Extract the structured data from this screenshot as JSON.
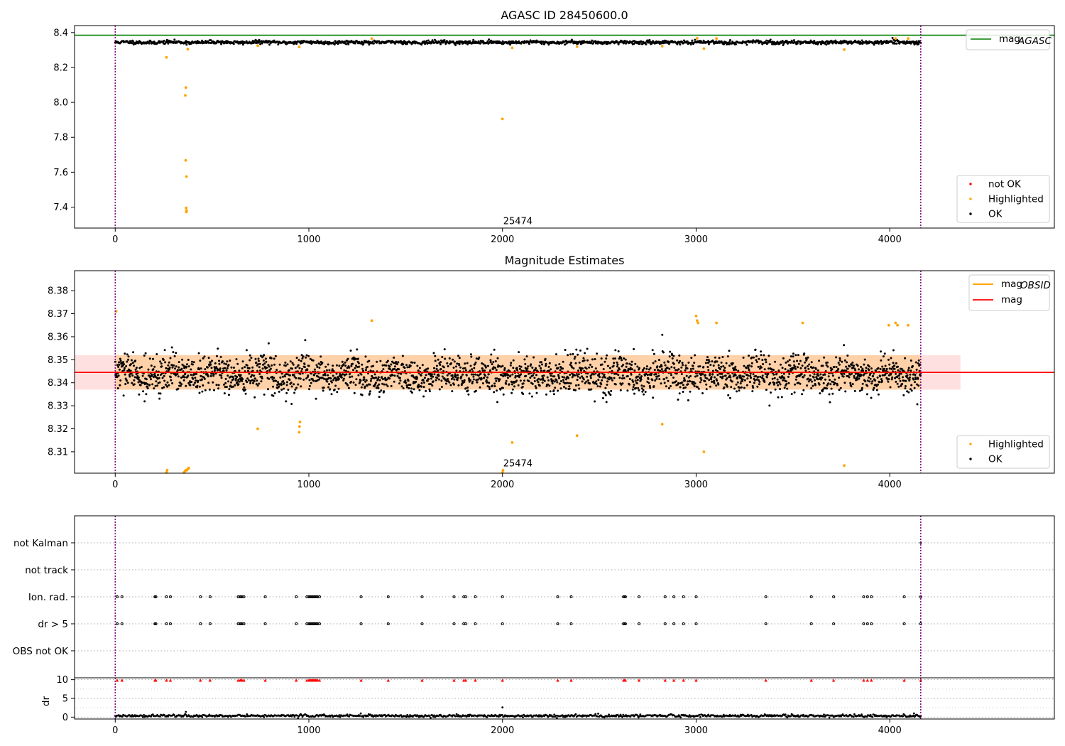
{
  "chart_data": [
    {
      "type": "scatter",
      "title": "AGASC ID 28450600.0",
      "xlim": [
        -210,
        4850
      ],
      "ylim": [
        7.28,
        8.44
      ],
      "x_ticks": [
        0,
        1000,
        2000,
        3000,
        4000
      ],
      "y_ticks": [
        7.4,
        7.6,
        7.8,
        8.0,
        8.2,
        8.4
      ],
      "x_ticks_labels": [
        "0",
        "1000",
        "2000",
        "3000",
        "4000"
      ],
      "y_ticks_labels": [
        "7.4",
        "7.6",
        "7.8",
        "8.0",
        "8.2",
        "8.4"
      ],
      "grid": false,
      "obs_boundaries": [
        0,
        4160
      ],
      "obs_label": "25474",
      "obs_label_position": {
        "x": 2000,
        "y": 7.31
      },
      "lines": [
        {
          "name": "mag_AGASC",
          "value": 8.385,
          "color": "#008000"
        }
      ],
      "ok_band": {
        "center": 8.344,
        "spread": 0.012,
        "x_range": [
          0,
          4160
        ]
      },
      "highlighted_points": [
        {
          "x": 265,
          "y": 8.258
        },
        {
          "x": 375,
          "y": 8.305
        },
        {
          "x": 365,
          "y": 8.085
        },
        {
          "x": 362,
          "y": 8.04
        },
        {
          "x": 364,
          "y": 7.668
        },
        {
          "x": 368,
          "y": 7.575
        },
        {
          "x": 366,
          "y": 7.395
        },
        {
          "x": 369,
          "y": 7.38
        },
        {
          "x": 367,
          "y": 7.372
        },
        {
          "x": 736,
          "y": 8.325
        },
        {
          "x": 950,
          "y": 8.318
        },
        {
          "x": 1325,
          "y": 8.365
        },
        {
          "x": 2000,
          "y": 7.905
        },
        {
          "x": 2050,
          "y": 8.312
        },
        {
          "x": 2385,
          "y": 8.32
        },
        {
          "x": 2825,
          "y": 8.322
        },
        {
          "x": 3005,
          "y": 8.367
        },
        {
          "x": 3040,
          "y": 8.308
        },
        {
          "x": 3105,
          "y": 8.366
        },
        {
          "x": 3765,
          "y": 8.302
        },
        {
          "x": 4030,
          "y": 8.366
        },
        {
          "x": 4095,
          "y": 8.366
        }
      ],
      "legend": {
        "lines": {
          "position": "top-right",
          "entries": [
            {
              "label": "mag",
              "subscript": "AGASC",
              "color": "#008000"
            }
          ]
        },
        "points": {
          "position": "bottom-right",
          "entries": [
            {
              "label": "not OK",
              "color": "#ff0000"
            },
            {
              "label": "Highlighted",
              "color": "#ffa500"
            },
            {
              "label": "OK",
              "color": "#000000"
            }
          ]
        }
      }
    },
    {
      "type": "scatter",
      "title": "Magnitude Estimates",
      "xlim": [
        -210,
        4850
      ],
      "ylim": [
        8.3007,
        8.3887
      ],
      "x_ticks": [
        0,
        1000,
        2000,
        3000,
        4000
      ],
      "y_ticks": [
        8.31,
        8.32,
        8.33,
        8.34,
        8.35,
        8.36,
        8.37,
        8.38
      ],
      "x_ticks_labels": [
        "0",
        "1000",
        "2000",
        "3000",
        "4000"
      ],
      "y_ticks_labels": [
        "8.31",
        "8.32",
        "8.33",
        "8.34",
        "8.35",
        "8.36",
        "8.37",
        "8.38"
      ],
      "grid": false,
      "obs_boundaries": [
        0,
        4160
      ],
      "obs_label": "25474",
      "obs_label_position": {
        "x": 2000,
        "y": 8.303
      },
      "lines": [
        {
          "name": "mag_OBSID",
          "value": 8.3445,
          "color": "#ffa500",
          "x_range": [
            0,
            4160
          ]
        },
        {
          "name": "mag",
          "value": 8.3445,
          "color": "#ff0000"
        }
      ],
      "bands": [
        {
          "color": "#ffa500",
          "alpha": 0.25,
          "y_range": [
            8.337,
            8.352
          ],
          "x_range": [
            0,
            4160
          ]
        },
        {
          "color": "#ff0000",
          "alpha": 0.12,
          "y_range": [
            8.337,
            8.352
          ],
          "x_range": [
            -210,
            4365
          ]
        }
      ],
      "ok_band": {
        "center": 8.3435,
        "spread": 0.0095,
        "x_range": [
          0,
          4160
        ]
      },
      "highlighted_points": [
        {
          "x": 5,
          "y": 8.371
        },
        {
          "x": 265,
          "y": 8.301
        },
        {
          "x": 268,
          "y": 8.302
        },
        {
          "x": 355,
          "y": 8.301
        },
        {
          "x": 360,
          "y": 8.3015
        },
        {
          "x": 365,
          "y": 8.302
        },
        {
          "x": 370,
          "y": 8.302
        },
        {
          "x": 375,
          "y": 8.3025
        },
        {
          "x": 380,
          "y": 8.303
        },
        {
          "x": 736,
          "y": 8.32
        },
        {
          "x": 950,
          "y": 8.3185
        },
        {
          "x": 952,
          "y": 8.321
        },
        {
          "x": 954,
          "y": 8.323
        },
        {
          "x": 1325,
          "y": 8.367
        },
        {
          "x": 2000,
          "y": 8.301
        },
        {
          "x": 2003,
          "y": 8.302
        },
        {
          "x": 2050,
          "y": 8.314
        },
        {
          "x": 2385,
          "y": 8.317
        },
        {
          "x": 2825,
          "y": 8.322
        },
        {
          "x": 3000,
          "y": 8.369
        },
        {
          "x": 3005,
          "y": 8.367
        },
        {
          "x": 3010,
          "y": 8.366
        },
        {
          "x": 3040,
          "y": 8.31
        },
        {
          "x": 3105,
          "y": 8.366
        },
        {
          "x": 3550,
          "y": 8.366
        },
        {
          "x": 3765,
          "y": 8.304
        },
        {
          "x": 3995,
          "y": 8.365
        },
        {
          "x": 4030,
          "y": 8.366
        },
        {
          "x": 4040,
          "y": 8.365
        },
        {
          "x": 4095,
          "y": 8.365
        }
      ],
      "legend": {
        "lines": {
          "position": "top-right",
          "entries": [
            {
              "label": "mag",
              "subscript": "OBSID",
              "color": "#ffa500"
            },
            {
              "label": "mag",
              "subscript": "",
              "color": "#ff0000"
            }
          ]
        },
        "points": {
          "position": "bottom-right",
          "entries": [
            {
              "label": "Highlighted",
              "color": "#ffa500"
            },
            {
              "label": "OK",
              "color": "#000000"
            }
          ]
        }
      }
    },
    {
      "type": "scatter",
      "title": "",
      "xlim": [
        -210,
        4850
      ],
      "categories": [
        "not Kalman",
        "not track",
        "Ion. rad.",
        "dr > 5",
        "OBS not OK"
      ],
      "obs_boundaries": [
        0,
        4160
      ],
      "flag_times": [
        10,
        35,
        205,
        210,
        265,
        285,
        440,
        490,
        635,
        645,
        650,
        655,
        665,
        775,
        935,
        990,
        1000,
        1005,
        1010,
        1015,
        1020,
        1025,
        1030,
        1035,
        1040,
        1045,
        1055,
        1270,
        1410,
        1585,
        1750,
        1800,
        1810,
        1860,
        2000,
        2285,
        2355,
        2625,
        2630,
        2635,
        2705,
        2840,
        2885,
        2935,
        3000,
        3360,
        3595,
        3710,
        3865,
        3885,
        3905,
        4075,
        4160
      ],
      "not_kalman_times": [
        4160
      ]
    },
    {
      "type": "scatter",
      "title": "",
      "ylabel": "dr",
      "xlim": [
        -210,
        4850
      ],
      "ylim": [
        -0.5,
        10.5
      ],
      "x_ticks": [
        0,
        1000,
        2000,
        3000,
        4000
      ],
      "y_ticks": [
        0,
        5,
        10
      ],
      "x_ticks_labels": [
        "0",
        "1000",
        "2000",
        "3000",
        "4000"
      ],
      "y_ticks_labels": [
        "0",
        "5",
        "10"
      ],
      "grid": true,
      "obs_boundaries": [
        0,
        4160
      ],
      "dr_baseline": 0.35,
      "dr_outliers": [
        {
          "x": 365,
          "y": 1.4
        },
        {
          "x": 2000,
          "y": 2.6
        },
        {
          "x": 4125,
          "y": 1.0
        }
      ],
      "flag_marker_y": 9.8
    }
  ],
  "colors": {
    "ok": "#000000",
    "highlighted": "#ffa500",
    "not_ok": "#ff0000",
    "obs_boundary": "#800080",
    "agasc_line": "#008000"
  }
}
